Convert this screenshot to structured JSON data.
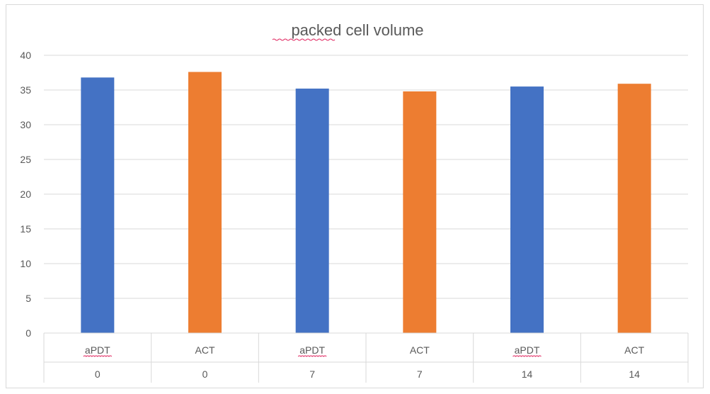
{
  "chart_data": {
    "type": "bar",
    "title": "packed cell volume",
    "xlabel": "",
    "ylabel": "",
    "ylim": [
      0,
      40
    ],
    "yticks": [
      0,
      5,
      10,
      15,
      20,
      25,
      30,
      35,
      40
    ],
    "grid": true,
    "legend": "none",
    "categories": [
      {
        "group": "aPDT",
        "day": "0",
        "color": "#4472C4",
        "value": 36.8
      },
      {
        "group": "ACT",
        "day": "0",
        "color": "#ED7D31",
        "value": 37.6
      },
      {
        "group": "aPDT",
        "day": "7",
        "color": "#4472C4",
        "value": 35.2
      },
      {
        "group": "ACT",
        "day": "7",
        "color": "#ED7D31",
        "value": 34.8
      },
      {
        "group": "aPDT",
        "day": "14",
        "color": "#4472C4",
        "value": 35.5
      },
      {
        "group": "ACT",
        "day": "14",
        "color": "#ED7D31",
        "value": 35.9
      }
    ]
  }
}
